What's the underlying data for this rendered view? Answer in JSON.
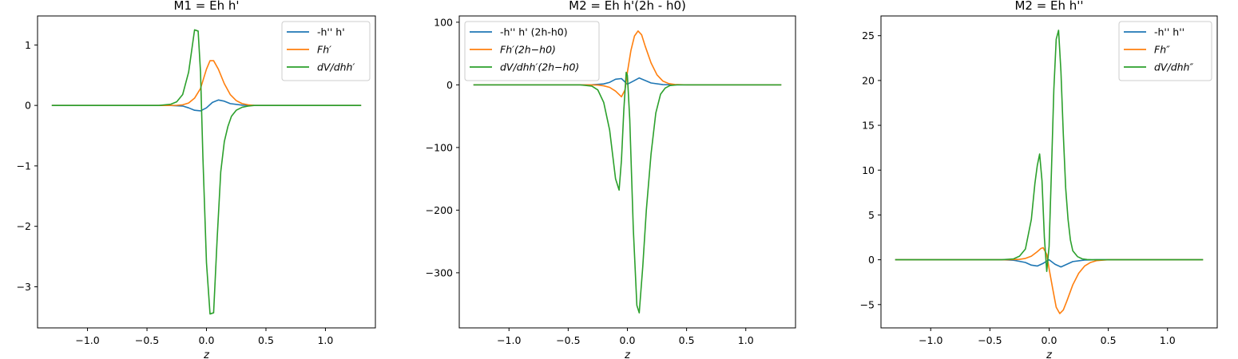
{
  "figure": {
    "background": "#ffffff",
    "colors": {
      "series": [
        "#1f77b4",
        "#ff7f0e",
        "#2ca02c"
      ],
      "axes": "#000000"
    }
  },
  "chart_data": [
    {
      "type": "line",
      "title": "M1 = Eh h'",
      "xlabel": "z",
      "ylabel": "",
      "xlim": [
        -1.42,
        1.42
      ],
      "ylim": [
        -3.68,
        1.48
      ],
      "xticks": [
        -1.0,
        -0.5,
        0.0,
        0.5,
        1.0
      ],
      "xtick_labels": [
        "−1.0",
        "−0.5",
        "0.0",
        "0.5",
        "1.0"
      ],
      "yticks": [
        -3,
        -2,
        -1,
        0,
        1
      ],
      "ytick_labels": [
        "−3",
        "−2",
        "−1",
        "0",
        "1"
      ],
      "grid": false,
      "legend_position": "upper right",
      "series": [
        {
          "name": "-h'' h'",
          "color": "#1f77b4",
          "x": [
            -1.3,
            -0.4,
            -0.3,
            -0.2,
            -0.15,
            -0.1,
            -0.05,
            0.0,
            0.05,
            0.1,
            0.15,
            0.2,
            0.3,
            0.4,
            1.3
          ],
          "y": [
            0,
            0,
            -0.001,
            -0.01,
            -0.04,
            -0.08,
            -0.09,
            -0.04,
            0.05,
            0.09,
            0.07,
            0.03,
            0.004,
            0,
            0
          ]
        },
        {
          "name": "Fh′",
          "color": "#ff7f0e",
          "x": [
            -1.3,
            -0.35,
            -0.25,
            -0.2,
            -0.15,
            -0.1,
            -0.05,
            0.0,
            0.03,
            0.06,
            0.1,
            0.15,
            0.2,
            0.25,
            0.3,
            0.35,
            0.4,
            0.5,
            1.3
          ],
          "y": [
            0,
            0,
            0.002,
            0.01,
            0.04,
            0.12,
            0.28,
            0.6,
            0.74,
            0.74,
            0.6,
            0.36,
            0.18,
            0.08,
            0.03,
            0.01,
            0.002,
            0,
            0
          ]
        },
        {
          "name": "dV/dhh′",
          "color": "#2ca02c",
          "x": [
            -1.3,
            -0.4,
            -0.3,
            -0.25,
            -0.2,
            -0.15,
            -0.1,
            -0.07,
            -0.05,
            -0.03,
            0.0,
            0.03,
            0.06,
            0.09,
            0.12,
            0.15,
            0.18,
            0.21,
            0.25,
            0.3,
            0.35,
            0.4,
            1.3
          ],
          "y": [
            0,
            0,
            0.02,
            0.06,
            0.18,
            0.55,
            1.25,
            1.23,
            0.55,
            -0.85,
            -2.6,
            -3.45,
            -3.43,
            -2.2,
            -1.1,
            -0.6,
            -0.35,
            -0.18,
            -0.08,
            -0.03,
            -0.01,
            0,
            0
          ]
        }
      ]
    },
    {
      "type": "line",
      "title": "M2 = Eh h'(2h - h0)",
      "xlabel": "z",
      "ylabel": "",
      "xlim": [
        -1.42,
        1.42
      ],
      "ylim": [
        -388,
        110
      ],
      "xticks": [
        -1.0,
        -0.5,
        0.0,
        0.5,
        1.0
      ],
      "xtick_labels": [
        "−1.0",
        "−0.5",
        "0.0",
        "0.5",
        "1.0"
      ],
      "yticks": [
        -300,
        -200,
        -100,
        0,
        100
      ],
      "ytick_labels": [
        "−300",
        "−200",
        "−100",
        "0",
        "100"
      ],
      "grid": false,
      "legend_position": "upper left",
      "series": [
        {
          "name": "-h'' h' (2h-h0)",
          "color": "#1f77b4",
          "x": [
            -1.3,
            -0.4,
            -0.3,
            -0.2,
            -0.15,
            -0.1,
            -0.05,
            0.0,
            0.05,
            0.1,
            0.15,
            0.2,
            0.3,
            0.4,
            1.3
          ],
          "y": [
            0,
            0,
            0.1,
            1.5,
            4,
            9,
            10,
            1,
            6,
            11,
            7,
            3,
            0.4,
            0,
            0
          ]
        },
        {
          "name": "Fh′(2h−h0)",
          "color": "#ff7f0e",
          "x": [
            -1.3,
            -0.35,
            -0.25,
            -0.2,
            -0.15,
            -0.1,
            -0.05,
            -0.02,
            0.0,
            0.03,
            0.06,
            0.09,
            0.12,
            0.15,
            0.2,
            0.25,
            0.3,
            0.35,
            0.4,
            0.5,
            1.3
          ],
          "y": [
            0,
            0,
            -0.3,
            -1.5,
            -4,
            -10,
            -19,
            -8,
            20,
            55,
            78,
            86,
            80,
            62,
            35,
            16,
            6,
            2,
            0.5,
            0,
            0
          ]
        },
        {
          "name": "dV/dhh′(2h−h0)",
          "color": "#2ca02c",
          "x": [
            -1.3,
            -0.4,
            -0.3,
            -0.25,
            -0.2,
            -0.15,
            -0.1,
            -0.07,
            -0.05,
            -0.03,
            -0.01,
            0.0,
            0.02,
            0.05,
            0.08,
            0.1,
            0.13,
            0.16,
            0.2,
            0.24,
            0.28,
            0.32,
            0.36,
            0.42,
            1.3
          ],
          "y": [
            0,
            0,
            -2,
            -8,
            -28,
            -72,
            -150,
            -168,
            -120,
            -40,
            20,
            15,
            -55,
            -230,
            -352,
            -364,
            -290,
            -200,
            -110,
            -45,
            -15,
            -5,
            -1,
            0,
            0
          ]
        }
      ]
    },
    {
      "type": "line",
      "title": "M2 = Eh h''",
      "xlabel": "z",
      "ylabel": "",
      "xlim": [
        -1.42,
        1.42
      ],
      "ylim": [
        -7.6,
        27.2
      ],
      "xticks": [
        -1.0,
        -0.5,
        0.0,
        0.5,
        1.0
      ],
      "xtick_labels": [
        "−1.0",
        "−0.5",
        "0.0",
        "0.5",
        "1.0"
      ],
      "yticks": [
        -5,
        0,
        5,
        10,
        15,
        20,
        25
      ],
      "ytick_labels": [
        "−5",
        "0",
        "5",
        "10",
        "15",
        "20",
        "25"
      ],
      "grid": false,
      "legend_position": "upper right",
      "series": [
        {
          "name": "-h'' h''",
          "color": "#1f77b4",
          "x": [
            -1.3,
            -0.4,
            -0.3,
            -0.2,
            -0.15,
            -0.1,
            -0.05,
            0.0,
            0.05,
            0.1,
            0.15,
            0.2,
            0.3,
            0.4,
            1.3
          ],
          "y": [
            0,
            0,
            -0.05,
            -0.3,
            -0.6,
            -0.7,
            -0.4,
            0.0,
            -0.5,
            -0.8,
            -0.5,
            -0.2,
            -0.03,
            0,
            0
          ]
        },
        {
          "name": "Fh″",
          "color": "#ff7f0e",
          "x": [
            -1.3,
            -0.35,
            -0.25,
            -0.2,
            -0.15,
            -0.1,
            -0.07,
            -0.05,
            -0.02,
            0.0,
            0.03,
            0.06,
            0.09,
            0.12,
            0.15,
            0.2,
            0.25,
            0.3,
            0.35,
            0.4,
            0.5,
            1.3
          ],
          "y": [
            0,
            0,
            0.05,
            0.15,
            0.4,
            0.9,
            1.25,
            1.35,
            0.6,
            -1.0,
            -3.2,
            -5.3,
            -6.0,
            -5.6,
            -4.6,
            -2.8,
            -1.5,
            -0.7,
            -0.3,
            -0.1,
            0,
            0
          ]
        },
        {
          "name": "dV/dhh″",
          "color": "#2ca02c",
          "x": [
            -1.3,
            -0.4,
            -0.3,
            -0.25,
            -0.2,
            -0.15,
            -0.12,
            -0.1,
            -0.08,
            -0.06,
            -0.04,
            -0.02,
            0.0,
            0.02,
            0.04,
            0.06,
            0.08,
            0.1,
            0.12,
            0.14,
            0.16,
            0.18,
            0.2,
            0.24,
            0.28,
            0.32,
            0.36,
            0.42,
            1.3
          ],
          "y": [
            0,
            0,
            0.1,
            0.4,
            1.2,
            4.5,
            8.5,
            10.5,
            11.8,
            8.8,
            2.5,
            -1.3,
            1.5,
            10,
            19,
            24.6,
            25.6,
            21,
            14,
            8,
            4.5,
            2.2,
            1.0,
            0.35,
            0.1,
            0.03,
            0,
            0,
            0
          ]
        }
      ]
    }
  ]
}
